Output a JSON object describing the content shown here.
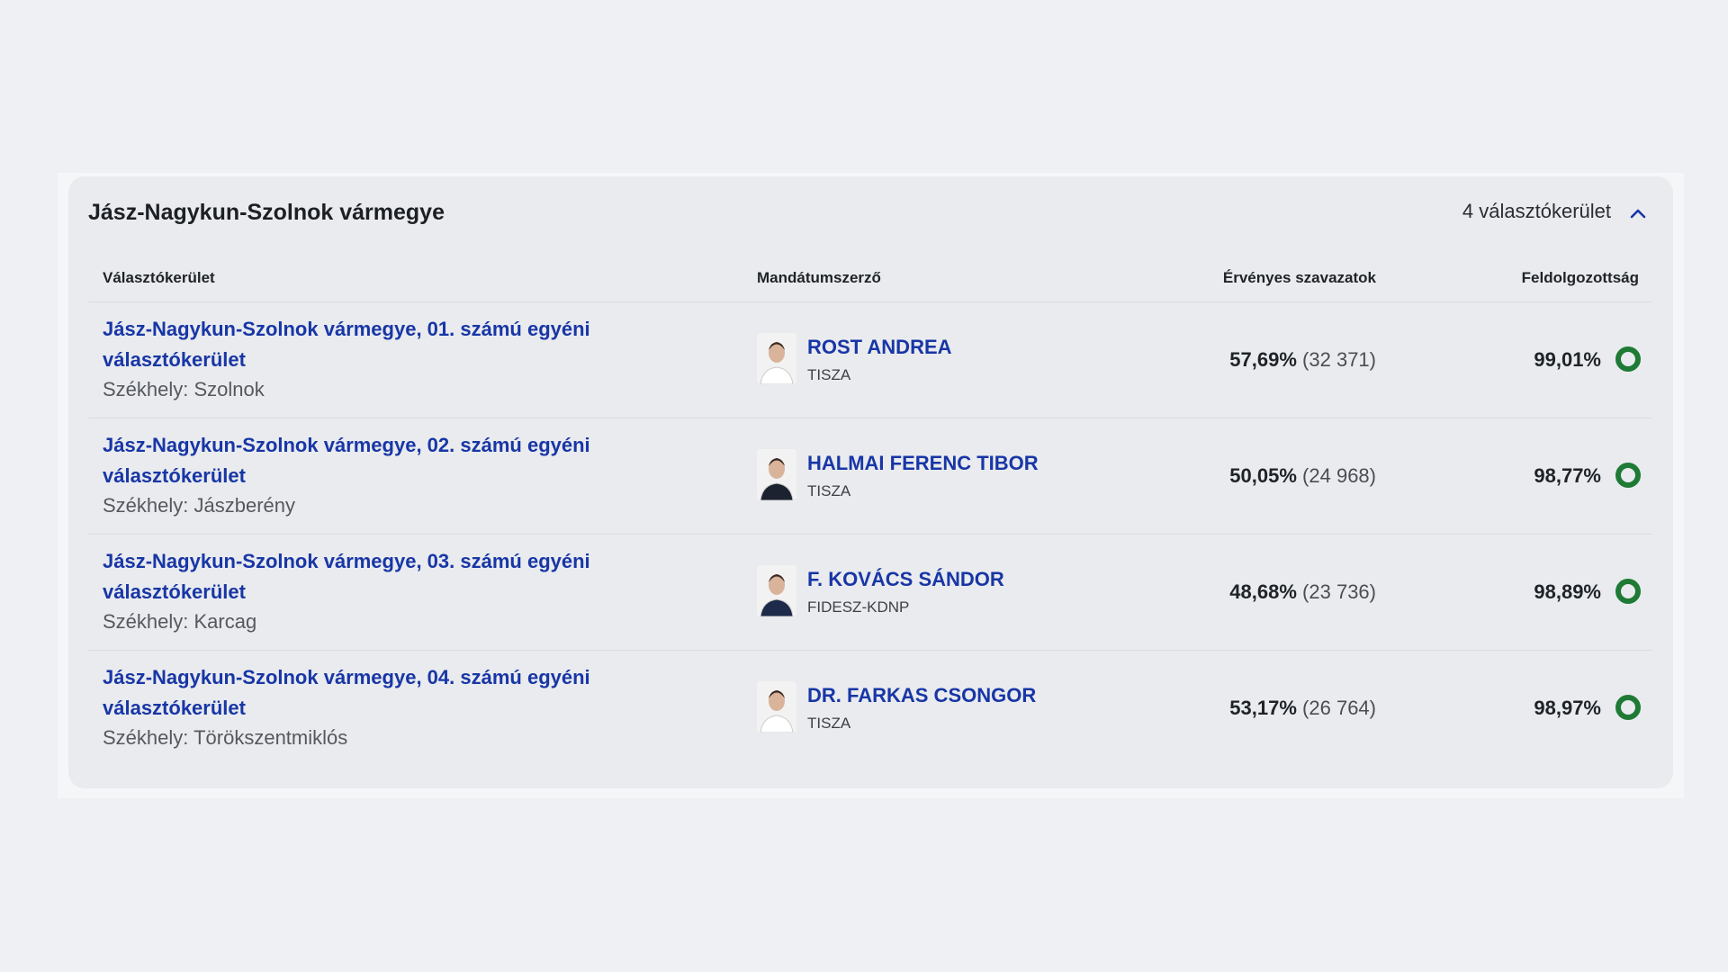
{
  "header": {
    "title": "Jász-Nagykun-Szolnok vármegye",
    "count": "4 választókerület"
  },
  "table": {
    "columns": [
      "Választókerület",
      "Mandátumszerző",
      "Érvényes szavazatok",
      "Feldolgozottság"
    ],
    "rows": [
      {
        "district": "Jász-Nagykun-Szolnok vármegye, 01. számú egyéni választókerület",
        "seat": "Székhely: Szolnok",
        "winner": "ROST ANDREA",
        "party": "TISZA",
        "percent": "57,69%",
        "votes": "(32 371)",
        "processed": "99,01%"
      },
      {
        "district": "Jász-Nagykun-Szolnok vármegye, 02. számú egyéni választókerület",
        "seat": "Székhely: Jászberény",
        "winner": "HALMAI FERENC TIBOR",
        "party": "TISZA",
        "percent": "50,05%",
        "votes": "(24 968)",
        "processed": "98,77%"
      },
      {
        "district": "Jász-Nagykun-Szolnok vármegye, 03. számú egyéni választókerület",
        "seat": "Székhely: Karcag",
        "winner": "F. KOVÁCS SÁNDOR",
        "party": "FIDESZ-KDNP",
        "percent": "48,68%",
        "votes": "(23 736)",
        "processed": "98,89%"
      },
      {
        "district": "Jász-Nagykun-Szolnok vármegye, 04. számú egyéni választókerület",
        "seat": "Székhely: Törökszentmiklós",
        "winner": "DR. FARKAS CSONGOR",
        "party": "TISZA",
        "percent": "53,17%",
        "votes": "(26 764)",
        "processed": "98,97%"
      }
    ]
  }
}
